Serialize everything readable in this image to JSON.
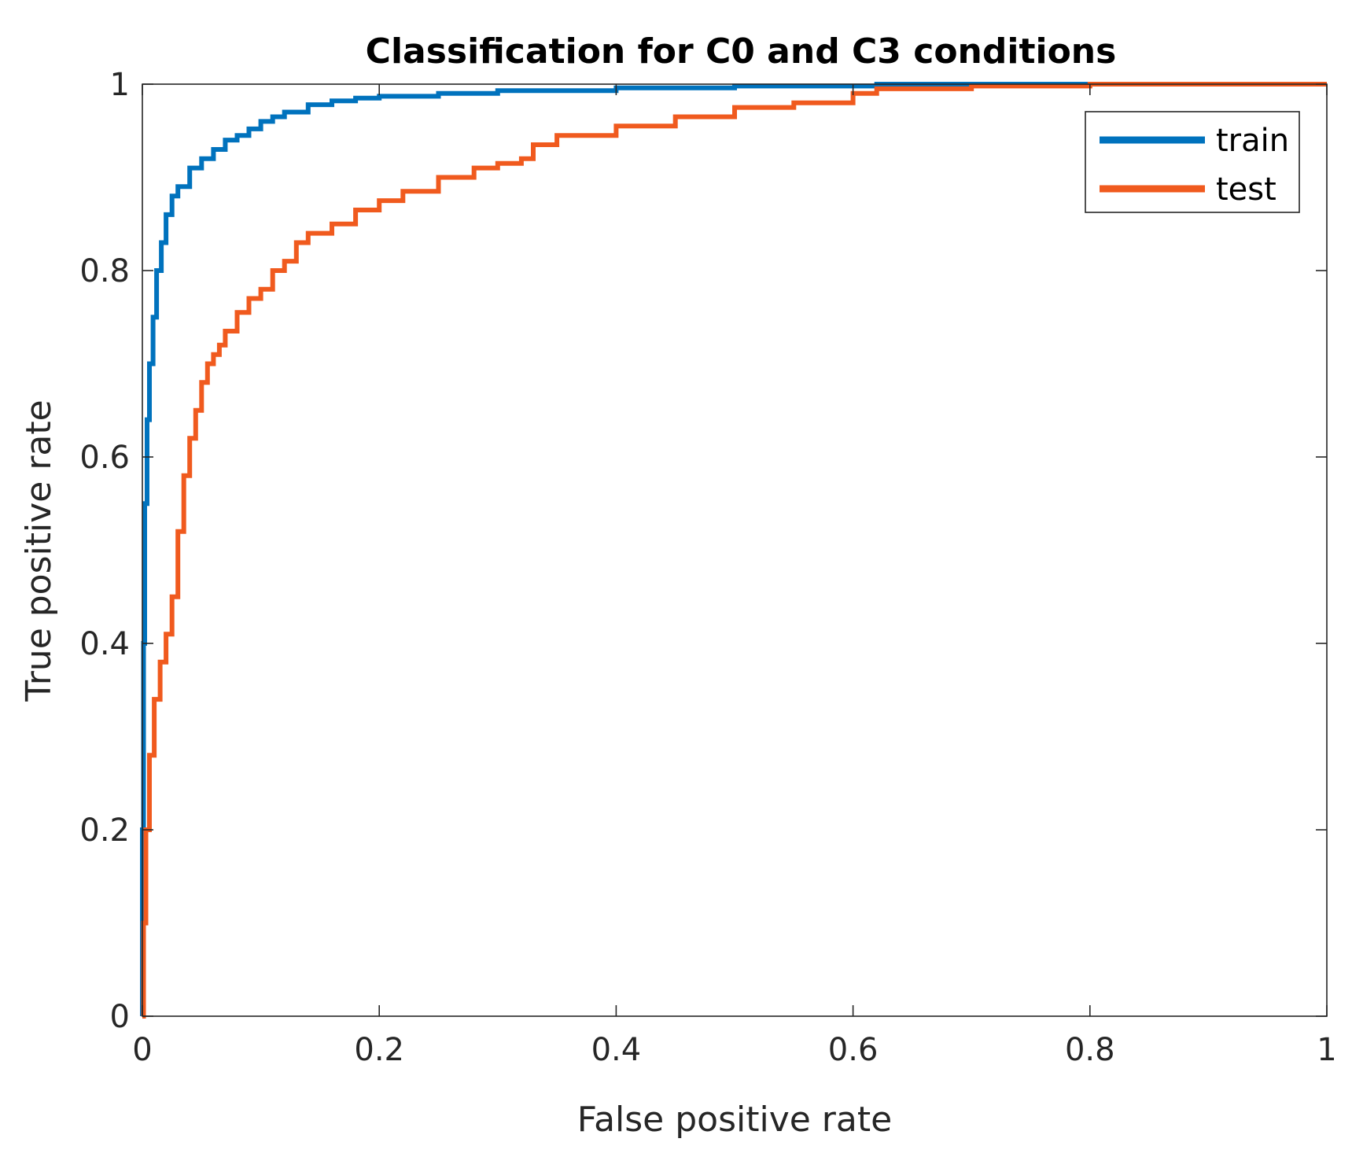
{
  "chart_data": {
    "type": "line",
    "title": "Classification for C0 and C3 conditions",
    "xlabel": "False positive rate",
    "ylabel": "True positive rate",
    "xlim": [
      0,
      1
    ],
    "ylim": [
      0,
      1
    ],
    "xticks": [
      0,
      0.2,
      0.4,
      0.6,
      0.8,
      1
    ],
    "xtick_labels": [
      "0",
      "0.2",
      "0.4",
      "0.6",
      "0.8",
      "1"
    ],
    "yticks": [
      0,
      0.2,
      0.4,
      0.6,
      0.8,
      1
    ],
    "ytick_labels": [
      "0",
      "0.2",
      "0.4",
      "0.6",
      "0.8",
      "1"
    ],
    "grid": false,
    "legend_position": "top-right",
    "series": [
      {
        "name": "train",
        "color": "#0072BD",
        "x": [
          0,
          0,
          0.001,
          0.002,
          0.004,
          0.006,
          0.009,
          0.012,
          0.016,
          0.02,
          0.025,
          0.03,
          0.04,
          0.05,
          0.06,
          0.07,
          0.08,
          0.09,
          0.1,
          0.11,
          0.12,
          0.14,
          0.16,
          0.18,
          0.2,
          0.25,
          0.3,
          0.4,
          0.5,
          0.62,
          0.78,
          1
        ],
        "y": [
          0,
          0.2,
          0.4,
          0.55,
          0.64,
          0.7,
          0.75,
          0.8,
          0.83,
          0.86,
          0.88,
          0.89,
          0.91,
          0.92,
          0.93,
          0.94,
          0.945,
          0.952,
          0.96,
          0.965,
          0.97,
          0.978,
          0.982,
          0.985,
          0.987,
          0.99,
          0.993,
          0.996,
          0.998,
          1.0,
          1.0,
          1.0
        ]
      },
      {
        "name": "test",
        "color": "#F05A1E",
        "x": [
          0,
          0.001,
          0.003,
          0.006,
          0.01,
          0.015,
          0.02,
          0.025,
          0.03,
          0.035,
          0.04,
          0.045,
          0.05,
          0.055,
          0.06,
          0.065,
          0.07,
          0.08,
          0.09,
          0.1,
          0.11,
          0.12,
          0.13,
          0.14,
          0.16,
          0.18,
          0.2,
          0.22,
          0.25,
          0.28,
          0.3,
          0.32,
          0.33,
          0.35,
          0.4,
          0.45,
          0.5,
          0.55,
          0.6,
          0.62,
          0.7,
          0.8,
          0.92,
          1
        ],
        "y": [
          0,
          0.1,
          0.2,
          0.28,
          0.34,
          0.38,
          0.41,
          0.45,
          0.52,
          0.58,
          0.62,
          0.65,
          0.68,
          0.7,
          0.71,
          0.72,
          0.735,
          0.755,
          0.77,
          0.78,
          0.8,
          0.81,
          0.83,
          0.84,
          0.85,
          0.865,
          0.875,
          0.885,
          0.9,
          0.91,
          0.915,
          0.92,
          0.935,
          0.945,
          0.955,
          0.965,
          0.975,
          0.98,
          0.99,
          0.995,
          0.998,
          1.0,
          1.0,
          1.0
        ]
      }
    ]
  }
}
